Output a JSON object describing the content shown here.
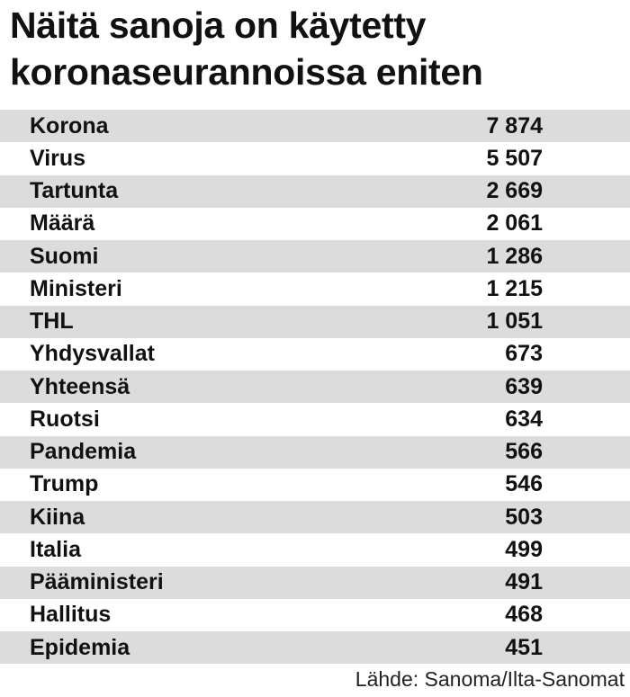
{
  "title_line1": "Näitä sanoja on käytetty",
  "title_line2": "koronaseurannoissa eniten",
  "source": "Lähde: Sanoma/Ilta-Sanomat",
  "colors": {
    "row_shade": "#dcdcdc",
    "text": "#111111"
  },
  "chart_data": {
    "type": "table",
    "title": "Näitä sanoja on käytetty koronaseurannoissa eniten",
    "columns": [
      "",
      ""
    ],
    "rows": [
      {
        "word": "Korona",
        "value": 7874,
        "display": "7 874"
      },
      {
        "word": "Virus",
        "value": 5507,
        "display": "5 507"
      },
      {
        "word": "Tartunta",
        "value": 2669,
        "display": "2 669"
      },
      {
        "word": "Määrä",
        "value": 2061,
        "display": "2 061"
      },
      {
        "word": "Suomi",
        "value": 1286,
        "display": "1 286"
      },
      {
        "word": "Ministeri",
        "value": 1215,
        "display": "1 215"
      },
      {
        "word": "THL",
        "value": 1051,
        "display": "1 051"
      },
      {
        "word": "Yhdysvallat",
        "value": 673,
        "display": "673"
      },
      {
        "word": "Yhteensä",
        "value": 639,
        "display": "639"
      },
      {
        "word": "Ruotsi",
        "value": 634,
        "display": "634"
      },
      {
        "word": "Pandemia",
        "value": 566,
        "display": "566"
      },
      {
        "word": "Trump",
        "value": 546,
        "display": "546"
      },
      {
        "word": "Kiina",
        "value": 503,
        "display": "503"
      },
      {
        "word": "Italia",
        "value": 499,
        "display": "499"
      },
      {
        "word": "Pääministeri",
        "value": 491,
        "display": "491"
      },
      {
        "word": "Hallitus",
        "value": 468,
        "display": "468"
      },
      {
        "word": "Epidemia",
        "value": 451,
        "display": "451"
      }
    ]
  }
}
